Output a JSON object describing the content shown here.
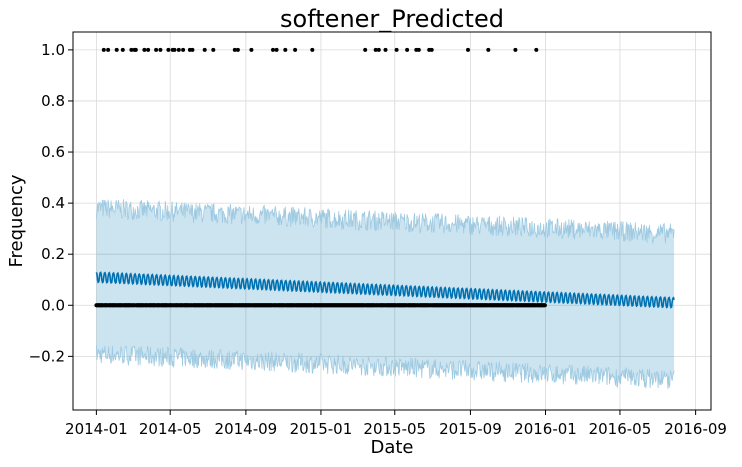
{
  "chart_data": {
    "type": "line",
    "title": "softener_Predicted",
    "xlabel": "Date",
    "ylabel": "Frequency",
    "xlim": [
      "2013-11-24",
      "2016-09-26"
    ],
    "ylim": [
      -0.41,
      1.07
    ],
    "x_ticks": [
      "2014-01",
      "2014-05",
      "2014-09",
      "2015-01",
      "2015-05",
      "2015-09",
      "2016-01",
      "2016-05",
      "2016-09"
    ],
    "y_ticks": [
      -0.2,
      0.0,
      0.2,
      0.4,
      0.6,
      0.8,
      1.0
    ],
    "y_tick_labels": [
      "−0.2",
      "0.0",
      "0.2",
      "0.4",
      "0.6",
      "0.8",
      "1.0"
    ],
    "grid": true,
    "colors": {
      "forecast": "#0072B2",
      "uncertainty": "#0072B2",
      "observed": "#000000",
      "grid": "#d9d9d9",
      "axes": "#000000"
    },
    "series": [
      {
        "kind": "observed_points",
        "x_range": [
          "2014-01-01",
          "2015-12-31"
        ],
        "baseline_value": 0.0,
        "points_at_one": [
          "2014-01-13",
          "2014-01-20",
          "2014-02-03",
          "2014-02-13",
          "2014-02-27",
          "2014-03-04",
          "2014-03-06",
          "2014-03-20",
          "2014-03-26",
          "2014-04-08",
          "2014-04-15",
          "2014-04-28",
          "2014-05-05",
          "2014-05-08",
          "2014-05-15",
          "2014-05-22",
          "2014-06-02",
          "2014-06-06",
          "2014-06-26",
          "2014-07-10",
          "2014-08-14",
          "2014-08-19",
          "2014-09-10",
          "2014-10-15",
          "2014-10-21",
          "2014-11-04",
          "2014-11-20",
          "2014-12-18",
          "2015-03-14",
          "2015-03-31",
          "2015-04-05",
          "2015-04-16",
          "2015-05-04",
          "2015-05-21",
          "2015-06-05",
          "2015-06-09",
          "2015-06-26",
          "2015-06-30",
          "2015-08-28",
          "2015-09-30",
          "2015-11-13",
          "2015-12-17"
        ]
      },
      {
        "kind": "forecast_band",
        "x_range": [
          "2014-01-01",
          "2016-07-28"
        ],
        "upper_start": 0.38,
        "upper_end": 0.28,
        "lower_start": -0.19,
        "lower_end": -0.29
      },
      {
        "kind": "forecast_line",
        "x_range": [
          "2014-01-01",
          "2016-07-28"
        ],
        "yhat_start": 0.11,
        "yhat_end": 0.01,
        "weekly_amplitude": 0.035
      }
    ]
  }
}
